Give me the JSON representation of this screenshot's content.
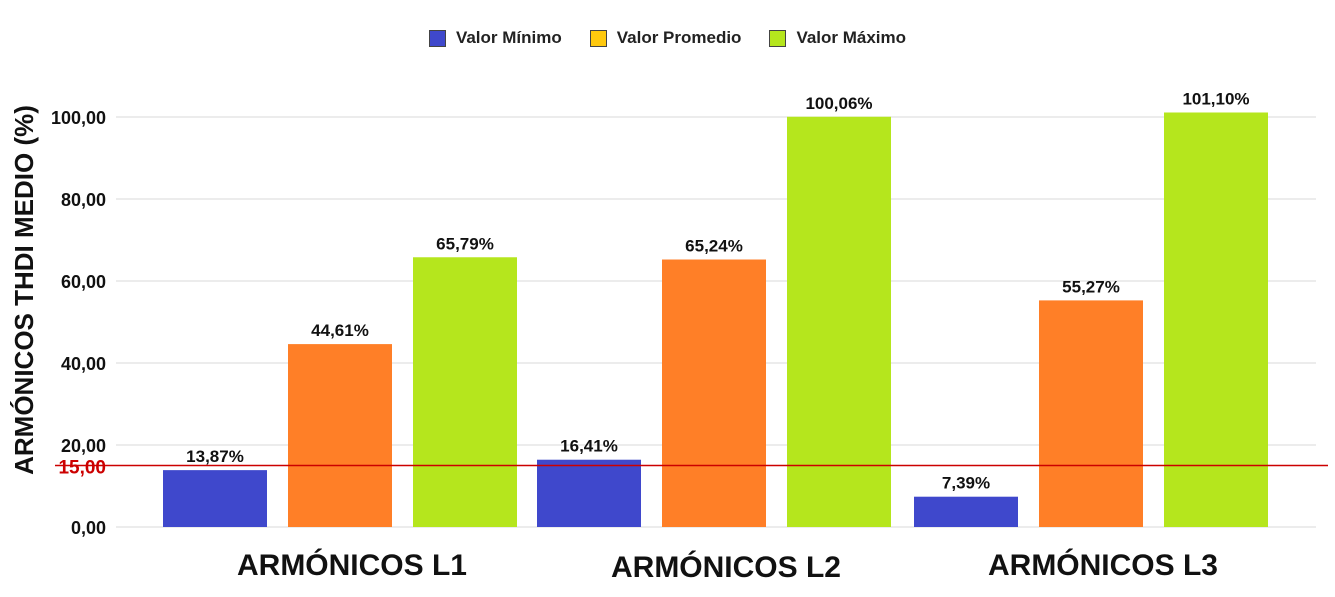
{
  "chart_data": {
    "type": "bar",
    "categories": [
      "ARMÓNICOS L1",
      "ARMÓNICOS L2",
      "ARMÓNICOS L3"
    ],
    "series": [
      {
        "name": "Valor Mínimo",
        "color": "#3f48cc",
        "values": [
          13.87,
          16.41,
          7.39
        ],
        "labels": [
          "13,87%",
          "16,41%",
          "7,39%"
        ]
      },
      {
        "name": "Valor Promedio",
        "color": "#ff7f27",
        "values": [
          44.61,
          65.24,
          55.27
        ],
        "labels": [
          "44,61%",
          "65,24%",
          "55,27%"
        ]
      },
      {
        "name": "Valor Máximo",
        "color": "#b5e61d",
        "values": [
          65.79,
          100.06,
          101.1
        ],
        "labels": [
          "65,79%",
          "100,06%",
          "101,10%"
        ]
      }
    ],
    "legend_colors": [
      "#3f48cc",
      "#ffc90e",
      "#b5e61d"
    ],
    "ylabel": "ARMÓNICOS THDI MEDIO (%)",
    "xlabel": "",
    "ylim": [
      0,
      100
    ],
    "yticks": [
      0,
      20,
      40,
      60,
      80,
      100
    ],
    "ytick_labels": [
      "0,00",
      "20,00",
      "40,00",
      "60,00",
      "80,00",
      "100,00"
    ],
    "reference_line": {
      "value": 15,
      "label": "15,00",
      "color": "#cc0000"
    },
    "grid": true,
    "legend_position": "top"
  }
}
